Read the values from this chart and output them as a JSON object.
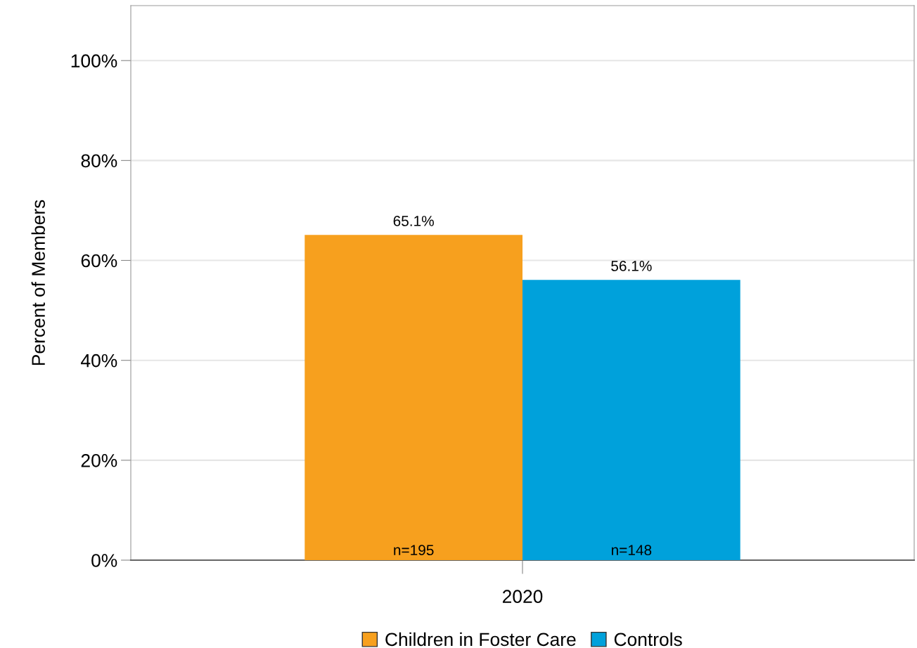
{
  "chart_data": {
    "type": "bar",
    "ylabel": "Percent of Members",
    "categories": [
      "2020"
    ],
    "series": [
      {
        "name": "Children in Foster Care",
        "color": "#f7a01e",
        "values": [
          65.1
        ],
        "value_labels": [
          "65.1%"
        ]
      },
      {
        "name": "Controls",
        "color": "#00a1db",
        "values": [
          56.1
        ],
        "value_labels": [
          "56.1%"
        ]
      }
    ],
    "annotations": [
      "n=195",
      "n=148"
    ],
    "ylim": [
      0,
      111
    ],
    "yticks": [
      {
        "value": 0,
        "label": "0%"
      },
      {
        "value": 20,
        "label": "20%"
      },
      {
        "value": 40,
        "label": "40%"
      },
      {
        "value": 60,
        "label": "60%"
      },
      {
        "value": 80,
        "label": "80%"
      },
      {
        "value": 100,
        "label": "100%"
      }
    ],
    "grid": "y",
    "legend": "bottom"
  }
}
